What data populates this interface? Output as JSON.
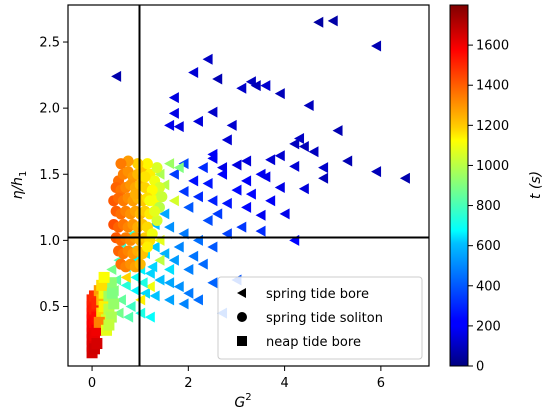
{
  "chart_data": {
    "type": "scatter",
    "xlabel": "G",
    "xlabel_sup": "2",
    "ylabel": "η/h",
    "ylabel_sub": "1",
    "colorbar_label": "t (s)",
    "xlim": [
      -0.5,
      7.0
    ],
    "ylim": [
      0.05,
      2.78
    ],
    "xticks": [
      0,
      2,
      4,
      6
    ],
    "yticks": [
      0.5,
      1.0,
      1.5,
      2.0,
      2.5
    ],
    "xtick_labels": [
      "0",
      "2",
      "4",
      "6"
    ],
    "ytick_labels": [
      "0.5",
      "1.0",
      "1.5",
      "2.0",
      "2.5"
    ],
    "colorbar": {
      "colormap": "jet",
      "range": [
        0,
        1800
      ],
      "ticks": [
        0,
        200,
        400,
        600,
        800,
        1000,
        1200,
        1400,
        1600
      ],
      "tick_labels": [
        "0",
        "200",
        "400",
        "600",
        "800",
        "1000",
        "1200",
        "1400",
        "1600"
      ]
    },
    "reference_lines": {
      "vertical_x": 1.0,
      "horizontal_y": 1.0
    },
    "legend": {
      "placement": "lower-right",
      "entries": [
        {
          "label": "spring tide bore",
          "marker": "triangle-left"
        },
        {
          "label": "spring tide soliton",
          "marker": "circle"
        },
        {
          "label": "neap tide bore",
          "marker": "square"
        }
      ]
    },
    "series": [
      {
        "marker": "triangle-left",
        "points": [
          [
            0.5,
            2.24,
            80
          ],
          [
            2.1,
            2.27,
            150
          ],
          [
            2.4,
            2.37,
            120
          ],
          [
            2.6,
            2.22,
            90
          ],
          [
            3.3,
            2.2,
            110
          ],
          [
            3.1,
            2.15,
            130
          ],
          [
            3.4,
            2.17,
            100
          ],
          [
            3.6,
            2.17,
            140
          ],
          [
            4.7,
            2.65,
            60
          ],
          [
            5.0,
            2.66,
            70
          ],
          [
            5.9,
            2.47,
            90
          ],
          [
            4.5,
            2.02,
            110
          ],
          [
            1.7,
            2.08,
            170
          ],
          [
            1.7,
            1.96,
            180
          ],
          [
            2.5,
            1.97,
            130
          ],
          [
            3.9,
            2.11,
            100
          ],
          [
            1.6,
            1.87,
            190
          ],
          [
            1.8,
            1.86,
            170
          ],
          [
            2.2,
            1.9,
            160
          ],
          [
            2.9,
            1.87,
            140
          ],
          [
            4.3,
            1.77,
            120
          ],
          [
            4.2,
            1.73,
            110
          ],
          [
            5.1,
            1.83,
            90
          ],
          [
            4.4,
            1.71,
            100
          ],
          [
            2.8,
            1.76,
            150
          ],
          [
            6.5,
            1.47,
            80
          ],
          [
            5.3,
            1.6,
            90
          ],
          [
            4.8,
            1.47,
            100
          ],
          [
            4.6,
            1.67,
            110
          ],
          [
            3.9,
            1.64,
            140
          ],
          [
            3.7,
            1.61,
            150
          ],
          [
            3.2,
            1.6,
            160
          ],
          [
            3.0,
            1.57,
            170
          ],
          [
            2.7,
            1.55,
            180
          ],
          [
            2.5,
            1.62,
            200
          ],
          [
            2.5,
            1.65,
            210
          ],
          [
            2.7,
            1.5,
            220
          ],
          [
            3.2,
            1.45,
            210
          ],
          [
            3.5,
            1.5,
            200
          ],
          [
            3.6,
            1.48,
            190
          ],
          [
            3.9,
            1.4,
            180
          ],
          [
            4.4,
            1.39,
            160
          ],
          [
            4.2,
            1.56,
            150
          ],
          [
            4.8,
            1.55,
            130
          ],
          [
            5.9,
            1.52,
            100
          ],
          [
            2.1,
            1.45,
            250
          ],
          [
            2.4,
            1.43,
            260
          ],
          [
            3.0,
            1.38,
            240
          ],
          [
            3.3,
            1.35,
            230
          ],
          [
            3.7,
            1.3,
            210
          ],
          [
            4.0,
            1.2,
            190
          ],
          [
            3.5,
            1.19,
            200
          ],
          [
            3.2,
            1.25,
            230
          ],
          [
            2.8,
            1.28,
            260
          ],
          [
            2.5,
            1.3,
            280
          ],
          [
            2.2,
            1.33,
            300
          ],
          [
            1.9,
            1.37,
            320
          ],
          [
            1.7,
            1.5,
            330
          ],
          [
            1.9,
            1.58,
            350
          ],
          [
            2.3,
            1.55,
            300
          ],
          [
            2.0,
            1.25,
            380
          ],
          [
            2.4,
            1.15,
            360
          ],
          [
            2.6,
            1.2,
            330
          ],
          [
            2.8,
            1.05,
            340
          ],
          [
            3.1,
            1.1,
            320
          ],
          [
            3.5,
            1.07,
            300
          ],
          [
            4.2,
            1.0,
            230
          ],
          [
            2.5,
            0.95,
            380
          ],
          [
            2.2,
            1.0,
            420
          ],
          [
            1.9,
            1.05,
            440
          ],
          [
            1.6,
            1.1,
            480
          ],
          [
            1.3,
            1.12,
            560
          ],
          [
            1.2,
            1.2,
            600
          ],
          [
            1.5,
            1.2,
            520
          ],
          [
            1.8,
            0.95,
            460
          ],
          [
            2.1,
            0.88,
            430
          ],
          [
            2.3,
            0.82,
            410
          ],
          [
            2.0,
            0.78,
            450
          ],
          [
            1.7,
            0.85,
            500
          ],
          [
            1.5,
            0.9,
            540
          ],
          [
            1.3,
            0.95,
            580
          ],
          [
            1.1,
            0.98,
            620
          ],
          [
            0.95,
            1.0,
            650
          ],
          [
            0.8,
            0.92,
            700
          ],
          [
            0.6,
            0.95,
            760
          ],
          [
            0.55,
            0.85,
            800
          ],
          [
            0.7,
            0.8,
            720
          ],
          [
            0.9,
            0.85,
            680
          ],
          [
            1.0,
            0.78,
            660
          ],
          [
            1.2,
            0.75,
            600
          ],
          [
            1.4,
            0.7,
            560
          ],
          [
            1.6,
            0.68,
            520
          ],
          [
            1.8,
            0.65,
            480
          ],
          [
            2.0,
            0.6,
            440
          ],
          [
            2.2,
            0.55,
            420
          ],
          [
            1.9,
            0.52,
            460
          ],
          [
            1.6,
            0.55,
            510
          ],
          [
            1.3,
            0.58,
            570
          ],
          [
            1.1,
            0.6,
            610
          ],
          [
            0.9,
            0.62,
            660
          ],
          [
            0.7,
            0.66,
            740
          ],
          [
            0.5,
            0.7,
            830
          ],
          [
            0.4,
            0.78,
            880
          ],
          [
            0.45,
            0.62,
            900
          ],
          [
            0.6,
            0.55,
            850
          ],
          [
            0.8,
            0.5,
            780
          ],
          [
            1.0,
            0.45,
            720
          ],
          [
            1.2,
            0.42,
            680
          ],
          [
            0.75,
            0.42,
            820
          ],
          [
            0.55,
            0.45,
            880
          ],
          [
            2.7,
            0.45,
            390
          ],
          [
            3.0,
            0.7,
            370
          ],
          [
            2.5,
            0.68,
            400
          ],
          [
            1.8,
            1.55,
            900
          ],
          [
            1.6,
            1.58,
            950
          ],
          [
            1.4,
            1.5,
            980
          ],
          [
            1.5,
            1.42,
            1000
          ],
          [
            1.3,
            1.35,
            1020
          ],
          [
            1.7,
            1.3,
            1050
          ],
          [
            1.4,
            1.0,
            1080
          ],
          [
            1.2,
            0.65,
            1100
          ],
          [
            1.0,
            0.55,
            1150
          ],
          [
            0.7,
            0.72,
            1200
          ],
          [
            1.4,
            0.85,
            1010
          ],
          [
            1.6,
            0.78,
            620
          ],
          [
            1.1,
            0.9,
            640
          ],
          [
            0.9,
            0.72,
            700
          ],
          [
            1.05,
            0.68,
            720
          ],
          [
            1.25,
            0.8,
            600
          ],
          [
            0.85,
            1.05,
            750
          ]
        ]
      },
      {
        "marker": "circle",
        "points": [
          [
            0.55,
            1.45,
            1380
          ],
          [
            0.65,
            1.5,
            1350
          ],
          [
            0.75,
            1.52,
            1320
          ],
          [
            0.85,
            1.48,
            1300
          ],
          [
            0.95,
            1.5,
            1250
          ],
          [
            1.05,
            1.52,
            1230
          ],
          [
            1.2,
            1.5,
            1150
          ],
          [
            1.3,
            1.45,
            1100
          ],
          [
            1.4,
            1.4,
            1050
          ],
          [
            0.5,
            1.4,
            1400
          ],
          [
            0.6,
            1.38,
            1370
          ],
          [
            0.7,
            1.4,
            1340
          ],
          [
            0.8,
            1.42,
            1310
          ],
          [
            0.9,
            1.4,
            1280
          ],
          [
            1.0,
            1.42,
            1240
          ],
          [
            1.1,
            1.4,
            1200
          ],
          [
            1.25,
            1.38,
            1130
          ],
          [
            0.45,
            1.3,
            1420
          ],
          [
            0.55,
            1.32,
            1390
          ],
          [
            0.65,
            1.3,
            1360
          ],
          [
            0.75,
            1.32,
            1330
          ],
          [
            0.85,
            1.3,
            1300
          ],
          [
            0.95,
            1.32,
            1260
          ],
          [
            1.05,
            1.3,
            1220
          ],
          [
            1.15,
            1.32,
            1180
          ],
          [
            1.3,
            1.3,
            1120
          ],
          [
            0.5,
            1.22,
            1410
          ],
          [
            0.6,
            1.2,
            1380
          ],
          [
            0.7,
            1.22,
            1350
          ],
          [
            0.8,
            1.2,
            1320
          ],
          [
            0.9,
            1.22,
            1290
          ],
          [
            1.0,
            1.2,
            1250
          ],
          [
            1.1,
            1.22,
            1210
          ],
          [
            1.2,
            1.2,
            1160
          ],
          [
            0.45,
            1.12,
            1440
          ],
          [
            0.55,
            1.1,
            1400
          ],
          [
            0.65,
            1.12,
            1370
          ],
          [
            0.75,
            1.1,
            1340
          ],
          [
            0.85,
            1.12,
            1310
          ],
          [
            0.95,
            1.1,
            1270
          ],
          [
            1.05,
            1.12,
            1230
          ],
          [
            1.15,
            1.1,
            1190
          ],
          [
            0.5,
            1.02,
            1420
          ],
          [
            0.6,
            1.0,
            1390
          ],
          [
            0.7,
            1.02,
            1360
          ],
          [
            0.8,
            1.0,
            1330
          ],
          [
            0.9,
            1.02,
            1300
          ],
          [
            1.0,
            1.0,
            1260
          ],
          [
            1.1,
            1.02,
            1220
          ],
          [
            1.2,
            1.0,
            1180
          ],
          [
            0.55,
            0.92,
            1400
          ],
          [
            0.65,
            0.9,
            1370
          ],
          [
            0.75,
            0.92,
            1340
          ],
          [
            0.85,
            0.9,
            1310
          ],
          [
            0.95,
            0.92,
            1270
          ],
          [
            1.05,
            0.9,
            1230
          ],
          [
            0.6,
            0.82,
            1380
          ],
          [
            0.7,
            0.8,
            1350
          ],
          [
            0.8,
            0.82,
            1320
          ],
          [
            0.9,
            0.8,
            1290
          ],
          [
            1.0,
            0.82,
            1250
          ],
          [
            1.15,
            0.95,
            1150
          ],
          [
            1.25,
            1.05,
            1100
          ],
          [
            1.35,
            1.15,
            1050
          ],
          [
            1.4,
            1.25,
            1000
          ],
          [
            1.45,
            1.33,
            1030
          ],
          [
            1.35,
            1.55,
            1060
          ],
          [
            1.15,
            1.58,
            1140
          ],
          [
            0.95,
            1.58,
            1210
          ],
          [
            0.75,
            1.6,
            1300
          ],
          [
            0.6,
            1.58,
            1360
          ],
          [
            1.3,
            1.22,
            1080
          ],
          [
            1.2,
            1.3,
            1110
          ],
          [
            1.1,
            1.48,
            1170
          ],
          [
            0.9,
            1.35,
            1270
          ]
        ]
      },
      {
        "marker": "square",
        "points": [
          [
            0.0,
            0.15,
            1650
          ],
          [
            0.0,
            0.2,
            1640
          ],
          [
            0.0,
            0.25,
            1630
          ],
          [
            0.0,
            0.3,
            1620
          ],
          [
            0.0,
            0.35,
            1600
          ],
          [
            0.0,
            0.4,
            1580
          ],
          [
            0.0,
            0.45,
            1560
          ],
          [
            0.0,
            0.5,
            1540
          ],
          [
            0.0,
            0.55,
            1520
          ],
          [
            0.05,
            0.18,
            1660
          ],
          [
            0.05,
            0.28,
            1610
          ],
          [
            0.05,
            0.38,
            1570
          ],
          [
            0.05,
            0.48,
            1530
          ],
          [
            0.05,
            0.58,
            1500
          ],
          [
            0.1,
            0.22,
            1650
          ],
          [
            0.1,
            0.32,
            1600
          ],
          [
            0.1,
            0.42,
            1560
          ],
          [
            0.1,
            0.52,
            1510
          ],
          [
            0.15,
            0.62,
            1300
          ],
          [
            0.2,
            0.55,
            1250
          ],
          [
            0.2,
            0.45,
            1200
          ],
          [
            0.25,
            0.5,
            1150
          ],
          [
            0.25,
            0.6,
            1100
          ],
          [
            0.3,
            0.4,
            1050
          ],
          [
            0.35,
            0.48,
            1000
          ],
          [
            0.35,
            0.58,
            960
          ],
          [
            0.4,
            0.68,
            920
          ],
          [
            0.15,
            0.38,
            1350
          ],
          [
            0.3,
            0.32,
            1080
          ],
          [
            0.4,
            0.42,
            980
          ],
          [
            0.45,
            0.52,
            940
          ],
          [
            0.2,
            0.66,
            1180
          ],
          [
            0.25,
            0.72,
            1120
          ],
          [
            0.35,
            0.36,
            1020
          ],
          [
            0.42,
            0.6,
            900
          ]
        ]
      }
    ]
  }
}
